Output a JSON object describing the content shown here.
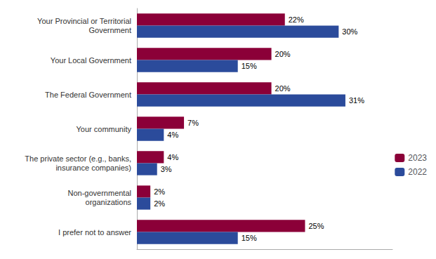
{
  "chart_data": {
    "type": "bar",
    "orientation": "horizontal",
    "categories": [
      "Your Provincial or Territorial\nGovernment",
      "Your Local Government",
      "The Federal Government",
      "Your community",
      "The private sector (e.g., banks,\ninsurance companies)",
      "Non-governmental\norganizations",
      "I prefer not to answer"
    ],
    "series": [
      {
        "name": "2023",
        "color": "#8B0038",
        "values": [
          22,
          20,
          20,
          7,
          4,
          2,
          25
        ],
        "value_labels": [
          "22%",
          "20%",
          "20%",
          "7%",
          "4%",
          "2%",
          "25%"
        ]
      },
      {
        "name": "2022",
        "color": "#2B4B9B",
        "values": [
          30,
          15,
          31,
          4,
          3,
          2,
          15
        ],
        "value_labels": [
          "30%",
          "15%",
          "31%",
          "4%",
          "3%",
          "2%",
          "15%"
        ]
      }
    ],
    "xlim": [
      0,
      38
    ],
    "tick_labels": "y",
    "grid": false,
    "legend": "right",
    "data_labels": true
  }
}
